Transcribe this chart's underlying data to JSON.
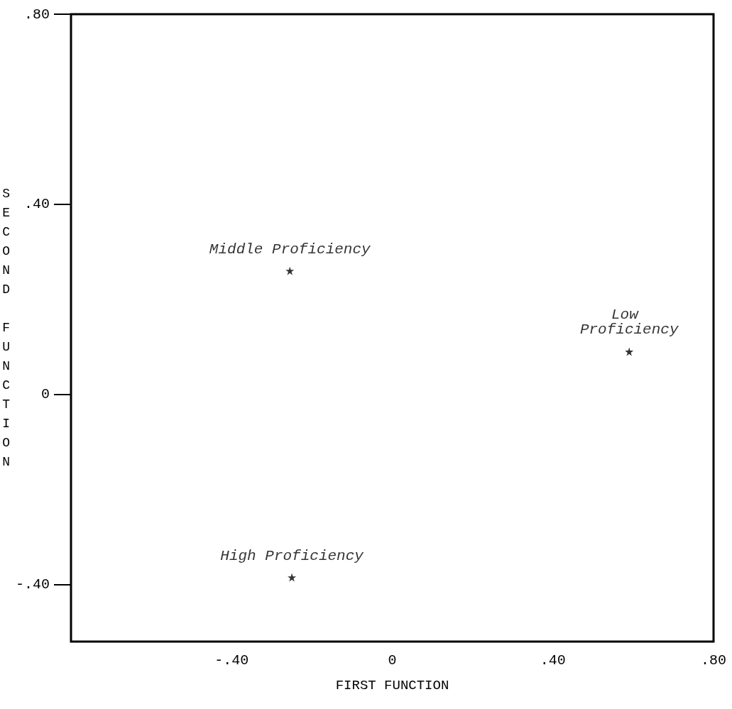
{
  "chart_data": {
    "type": "scatter",
    "xlabel": "FIRST FUNCTION",
    "ylabel": "SECOND FUNCTION",
    "xlim": [
      -0.8,
      0.8
    ],
    "ylim": [
      -0.52,
      0.8
    ],
    "xticks": [
      {
        "value": -0.4,
        "label": "-.40"
      },
      0,
      {
        "value": 0.4,
        "label": ".40"
      },
      {
        "value": 0.8,
        "label": ".80"
      }
    ],
    "yticks": [
      {
        "value": -0.4,
        "label": "-.40"
      },
      0,
      {
        "value": 0.4,
        "label": ".40"
      },
      {
        "value": 0.8,
        "label": ".80"
      }
    ],
    "series": [
      {
        "name": "Middle Proficiency",
        "color": "#000000",
        "x": [
          -0.255
        ],
        "values": [
          0.26
        ]
      },
      {
        "name": "Low Proficiency",
        "color": "#000000",
        "x": [
          0.59
        ],
        "values": [
          0.09
        ]
      },
      {
        "name": "High Proficiency",
        "color": "#000000",
        "x": [
          -0.25
        ],
        "values": [
          -0.385
        ]
      }
    ],
    "marker": "star",
    "grid": false,
    "legend": false
  }
}
